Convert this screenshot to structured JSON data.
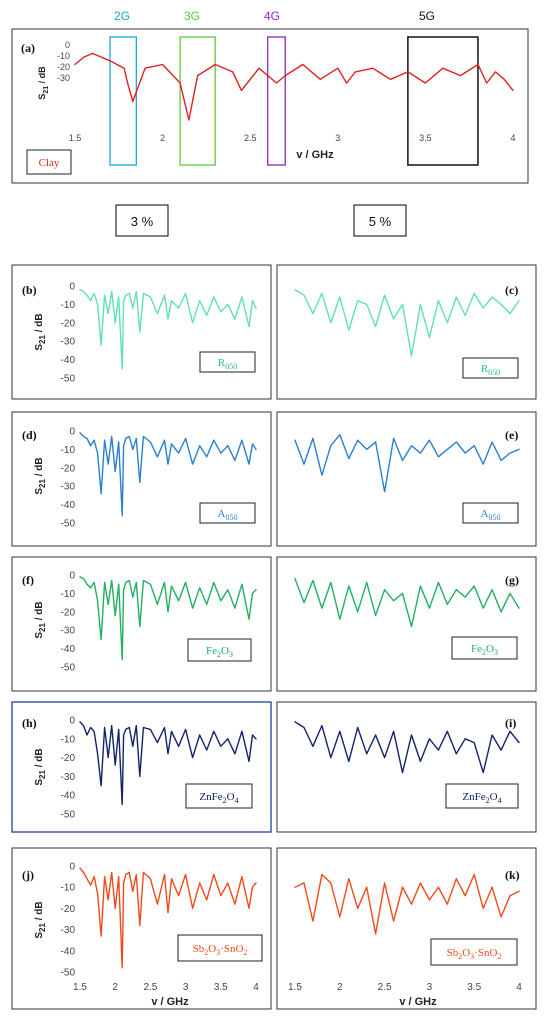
{
  "top": {
    "band_labels": [
      {
        "text": "2G",
        "color": "#19a6d8"
      },
      {
        "text": "3G",
        "color": "#5cc83a"
      },
      {
        "text": "4G",
        "color": "#8a2bb8"
      },
      {
        "text": "5G",
        "color": "#111111"
      }
    ],
    "pct_labels": [
      "3 %",
      "5 %"
    ]
  },
  "chart_data": [
    {
      "id": "a",
      "type": "line",
      "panel_label": "(a)",
      "ylabel": "S21 / dB",
      "xlabel": "v / GHz",
      "xlim": [
        1.5,
        4
      ],
      "ylim": [
        -20,
        0
      ],
      "xticks": [
        "1.5",
        "2",
        "2.5",
        "3",
        "3.5",
        "4"
      ],
      "yticks": [
        "0",
        "-10",
        "-20",
        "-30"
      ],
      "line_color": "#e02020",
      "legend": {
        "text": "Clay",
        "color": "#e02020"
      },
      "bands": [
        {
          "name": "2G",
          "range": [
            1.7,
            1.85
          ],
          "color": "#19a6d8"
        },
        {
          "name": "3G",
          "range": [
            2.1,
            2.3
          ],
          "color": "#5cc83a"
        },
        {
          "name": "4G",
          "range": [
            2.6,
            2.7
          ],
          "color": "#8a2bb8"
        },
        {
          "name": "5G",
          "range": [
            3.4,
            3.8
          ],
          "color": "#111111"
        }
      ],
      "x": [
        1.5,
        1.55,
        1.6,
        1.7,
        1.78,
        1.8,
        1.83,
        1.9,
        2.0,
        2.1,
        2.15,
        2.2,
        2.3,
        2.4,
        2.45,
        2.55,
        2.65,
        2.7,
        2.8,
        2.9,
        3.0,
        3.05,
        3.1,
        3.2,
        3.3,
        3.4,
        3.5,
        3.6,
        3.7,
        3.8,
        3.85,
        3.9,
        3.95,
        4.0
      ],
      "y": [
        -5,
        -3,
        -2,
        -4,
        -6,
        -10,
        -15,
        -6,
        -5,
        -10,
        -20,
        -8,
        -5,
        -7,
        -12,
        -6,
        -10,
        -8,
        -5,
        -9,
        -6,
        -10,
        -7,
        -6,
        -9,
        -7,
        -10,
        -6,
        -8,
        -5,
        -10,
        -7,
        -9,
        -12
      ]
    },
    {
      "id": "b",
      "type": "line",
      "panel_label": "(b)",
      "ylabel": "S21 / dB",
      "xlim": [
        1.5,
        4
      ],
      "ylim": [
        -50,
        0
      ],
      "yticks": [
        "0",
        "-10",
        "-20",
        "-30",
        "-40",
        "-50"
      ],
      "line_color": "#5fe0b6",
      "legend": {
        "text": "R050",
        "color": "#2fb88f"
      },
      "x": [
        1.5,
        1.55,
        1.6,
        1.65,
        1.7,
        1.75,
        1.8,
        1.85,
        1.9,
        1.95,
        2.0,
        2.05,
        2.1,
        2.12,
        2.15,
        2.2,
        2.25,
        2.3,
        2.35,
        2.4,
        2.5,
        2.6,
        2.7,
        2.75,
        2.8,
        2.9,
        3.0,
        3.1,
        3.2,
        3.3,
        3.4,
        3.5,
        3.6,
        3.7,
        3.8,
        3.9,
        3.95,
        4.0
      ],
      "y": [
        -2,
        -3,
        -5,
        -8,
        -4,
        -10,
        -32,
        -5,
        -15,
        -3,
        -20,
        -6,
        -45,
        -8,
        -5,
        -4,
        -12,
        -3,
        -25,
        -4,
        -6,
        -15,
        -5,
        -18,
        -8,
        -12,
        -4,
        -20,
        -8,
        -16,
        -6,
        -14,
        -10,
        -18,
        -6,
        -22,
        -8,
        -12
      ]
    },
    {
      "id": "c",
      "type": "line",
      "panel_label": "(c)",
      "ylabel": "",
      "xlim": [
        1.5,
        4
      ],
      "ylim": [
        -50,
        0
      ],
      "yticks": [],
      "line_color": "#5fe0b6",
      "legend": {
        "text": "R050",
        "color": "#2fb88f"
      },
      "x": [
        1.5,
        1.6,
        1.7,
        1.8,
        1.9,
        2.0,
        2.1,
        2.2,
        2.3,
        2.4,
        2.5,
        2.6,
        2.7,
        2.8,
        2.9,
        3.0,
        3.1,
        3.2,
        3.3,
        3.4,
        3.5,
        3.6,
        3.7,
        3.8,
        3.9,
        4.0
      ],
      "y": [
        -2,
        -5,
        -15,
        -4,
        -20,
        -6,
        -24,
        -8,
        -10,
        -22,
        -5,
        -18,
        -10,
        -38,
        -10,
        -28,
        -8,
        -20,
        -6,
        -16,
        -4,
        -12,
        -6,
        -10,
        -15,
        -8
      ]
    },
    {
      "id": "d",
      "type": "line",
      "panel_label": "(d)",
      "ylabel": "S21 / dB",
      "xlim": [
        1.5,
        4
      ],
      "ylim": [
        -50,
        0
      ],
      "yticks": [
        "0",
        "-10",
        "-20",
        "-30",
        "-40",
        "-50"
      ],
      "line_color": "#2a7fd0",
      "legend": {
        "text": "A050",
        "color": "#2a7fd0"
      },
      "x": [
        1.5,
        1.55,
        1.6,
        1.65,
        1.7,
        1.75,
        1.8,
        1.85,
        1.9,
        1.95,
        2.0,
        2.05,
        2.1,
        2.12,
        2.15,
        2.2,
        2.25,
        2.3,
        2.35,
        2.4,
        2.5,
        2.6,
        2.7,
        2.75,
        2.8,
        2.9,
        3.0,
        3.1,
        3.2,
        3.3,
        3.4,
        3.5,
        3.6,
        3.7,
        3.8,
        3.9,
        3.95,
        4.0
      ],
      "y": [
        -1,
        -3,
        -4,
        -8,
        -5,
        -12,
        -34,
        -5,
        -18,
        -3,
        -22,
        -6,
        -46,
        -8,
        -4,
        -3,
        -10,
        -4,
        -28,
        -3,
        -6,
        -14,
        -5,
        -18,
        -7,
        -12,
        -4,
        -18,
        -8,
        -14,
        -5,
        -12,
        -8,
        -16,
        -5,
        -18,
        -7,
        -10
      ]
    },
    {
      "id": "e",
      "type": "line",
      "panel_label": "(e)",
      "ylabel": "",
      "xlim": [
        1.5,
        4
      ],
      "ylim": [
        -50,
        0
      ],
      "yticks": [],
      "line_color": "#2a7fd0",
      "legend": {
        "text": "A050",
        "color": "#2a7fd0"
      },
      "x": [
        1.5,
        1.6,
        1.7,
        1.8,
        1.9,
        2.0,
        2.1,
        2.2,
        2.3,
        2.4,
        2.5,
        2.6,
        2.7,
        2.8,
        2.9,
        3.0,
        3.1,
        3.2,
        3.3,
        3.4,
        3.5,
        3.6,
        3.7,
        3.8,
        3.9,
        4.0
      ],
      "y": [
        -5,
        -18,
        -4,
        -24,
        -8,
        -2,
        -15,
        -5,
        -10,
        -6,
        -33,
        -4,
        -16,
        -8,
        -12,
        -5,
        -14,
        -10,
        -6,
        -12,
        -8,
        -18,
        -6,
        -16,
        -12,
        -10
      ]
    },
    {
      "id": "f",
      "type": "line",
      "panel_label": "(f)",
      "ylabel": "S21 / dB",
      "xlim": [
        1.5,
        4
      ],
      "ylim": [
        -50,
        0
      ],
      "yticks": [
        "0",
        "-10",
        "-20",
        "-30",
        "-40",
        "-50"
      ],
      "line_color": "#22b060",
      "legend": {
        "text": "Fe2O3",
        "color": "#22b060"
      },
      "x": [
        1.5,
        1.55,
        1.6,
        1.65,
        1.7,
        1.75,
        1.8,
        1.85,
        1.9,
        1.95,
        2.0,
        2.05,
        2.1,
        2.12,
        2.15,
        2.2,
        2.25,
        2.3,
        2.35,
        2.4,
        2.5,
        2.6,
        2.7,
        2.75,
        2.8,
        2.9,
        3.0,
        3.1,
        3.2,
        3.3,
        3.4,
        3.5,
        3.6,
        3.7,
        3.8,
        3.9,
        3.95,
        4.0
      ],
      "y": [
        -1,
        -2,
        -5,
        -7,
        -4,
        -14,
        -35,
        -4,
        -16,
        -3,
        -22,
        -5,
        -46,
        -8,
        -4,
        -3,
        -12,
        -4,
        -28,
        -3,
        -5,
        -16,
        -4,
        -20,
        -6,
        -14,
        -4,
        -18,
        -7,
        -16,
        -4,
        -14,
        -8,
        -18,
        -5,
        -24,
        -10,
        -8
      ]
    },
    {
      "id": "g",
      "type": "line",
      "panel_label": "(g)",
      "ylabel": "",
      "xlim": [
        1.5,
        4
      ],
      "ylim": [
        -50,
        0
      ],
      "yticks": [],
      "line_color": "#22b060",
      "legend": {
        "text": "Fe2O3",
        "color": "#22b060"
      },
      "x": [
        1.5,
        1.6,
        1.7,
        1.8,
        1.9,
        2.0,
        2.1,
        2.2,
        2.3,
        2.4,
        2.5,
        2.6,
        2.7,
        2.8,
        2.9,
        3.0,
        3.1,
        3.2,
        3.3,
        3.4,
        3.5,
        3.6,
        3.7,
        3.8,
        3.9,
        4.0
      ],
      "y": [
        -2,
        -15,
        -3,
        -18,
        -4,
        -24,
        -6,
        -20,
        -4,
        -22,
        -8,
        -14,
        -10,
        -28,
        -6,
        -18,
        -4,
        -16,
        -8,
        -12,
        -6,
        -18,
        -8,
        -20,
        -10,
        -18
      ]
    },
    {
      "id": "h",
      "type": "line",
      "panel_label": "(h)",
      "ylabel": "S21 / dB",
      "xlim": [
        1.5,
        4
      ],
      "ylim": [
        -50,
        0
      ],
      "yticks": [
        "0",
        "-10",
        "-20",
        "-30",
        "-40",
        "-50"
      ],
      "line_color": "#13236b",
      "legend": {
        "text": "ZnFe2O4",
        "color": "#13236b"
      },
      "x": [
        1.5,
        1.55,
        1.6,
        1.65,
        1.7,
        1.75,
        1.8,
        1.85,
        1.9,
        1.95,
        2.0,
        2.05,
        2.1,
        2.12,
        2.15,
        2.2,
        2.25,
        2.3,
        2.35,
        2.4,
        2.5,
        2.6,
        2.7,
        2.75,
        2.8,
        2.9,
        3.0,
        3.1,
        3.2,
        3.3,
        3.4,
        3.5,
        3.6,
        3.7,
        3.8,
        3.9,
        3.95,
        4.0
      ],
      "y": [
        -1,
        -3,
        -8,
        -4,
        -6,
        -18,
        -35,
        -4,
        -20,
        -3,
        -24,
        -5,
        -45,
        -8,
        -5,
        -4,
        -14,
        -3,
        -30,
        -4,
        -5,
        -12,
        -4,
        -18,
        -6,
        -14,
        -5,
        -20,
        -8,
        -16,
        -6,
        -14,
        -10,
        -18,
        -6,
        -22,
        -8,
        -10
      ]
    },
    {
      "id": "i",
      "type": "line",
      "panel_label": "(i)",
      "ylabel": "",
      "xlim": [
        1.5,
        4
      ],
      "ylim": [
        -50,
        0
      ],
      "yticks": [],
      "line_color": "#13236b",
      "legend": {
        "text": "ZnFe2O4",
        "color": "#13236b"
      },
      "x": [
        1.5,
        1.6,
        1.7,
        1.8,
        1.9,
        2.0,
        2.1,
        2.2,
        2.3,
        2.4,
        2.5,
        2.6,
        2.7,
        2.8,
        2.9,
        3.0,
        3.1,
        3.2,
        3.3,
        3.4,
        3.5,
        3.6,
        3.7,
        3.8,
        3.9,
        4.0
      ],
      "y": [
        -1,
        -4,
        -14,
        -3,
        -20,
        -6,
        -22,
        -4,
        -18,
        -8,
        -20,
        -6,
        -28,
        -8,
        -22,
        -10,
        -16,
        -6,
        -18,
        -10,
        -12,
        -28,
        -8,
        -16,
        -6,
        -12
      ]
    },
    {
      "id": "j",
      "type": "line",
      "panel_label": "(j)",
      "ylabel": "S21 / dB",
      "xlabel": "v / GHz",
      "xlim": [
        1.5,
        4
      ],
      "ylim": [
        -50,
        0
      ],
      "xticks": [
        "1.5",
        "2",
        "2.5",
        "3",
        "3.5",
        "4"
      ],
      "yticks": [
        "0",
        "-10",
        "-20",
        "-30",
        "-40",
        "-50"
      ],
      "line_color": "#f04a1a",
      "legend": {
        "text": "Sb2O3·SnO2",
        "color": "#f04a1a"
      },
      "x": [
        1.5,
        1.55,
        1.6,
        1.65,
        1.7,
        1.75,
        1.8,
        1.85,
        1.9,
        1.95,
        2.0,
        2.05,
        2.1,
        2.12,
        2.15,
        2.2,
        2.25,
        2.3,
        2.35,
        2.4,
        2.5,
        2.6,
        2.7,
        2.75,
        2.8,
        2.9,
        3.0,
        3.1,
        3.2,
        3.3,
        3.4,
        3.5,
        3.6,
        3.7,
        3.8,
        3.9,
        3.95,
        4.0
      ],
      "y": [
        -1,
        -3,
        -6,
        -9,
        -5,
        -13,
        -33,
        -5,
        -16,
        -3,
        -20,
        -5,
        -48,
        -8,
        -4,
        -3,
        -12,
        -4,
        -28,
        -3,
        -6,
        -18,
        -4,
        -22,
        -6,
        -14,
        -4,
        -20,
        -8,
        -16,
        -4,
        -14,
        -8,
        -18,
        -5,
        -20,
        -10,
        -8
      ]
    },
    {
      "id": "k",
      "type": "line",
      "panel_label": "(k)",
      "ylabel": "",
      "xlabel": "v / GHz",
      "xlim": [
        1.5,
        4
      ],
      "ylim": [
        -50,
        0
      ],
      "xticks": [
        "1.5",
        "2",
        "2.5",
        "3",
        "3.5",
        "4"
      ],
      "yticks": [],
      "line_color": "#f04a1a",
      "legend": {
        "text": "Sb2O3·SnO2",
        "color": "#f04a1a"
      },
      "x": [
        1.5,
        1.6,
        1.7,
        1.8,
        1.9,
        2.0,
        2.1,
        2.2,
        2.3,
        2.4,
        2.5,
        2.6,
        2.7,
        2.8,
        2.9,
        3.0,
        3.1,
        3.2,
        3.3,
        3.4,
        3.5,
        3.6,
        3.7,
        3.8,
        3.9,
        4.0
      ],
      "y": [
        -10,
        -8,
        -26,
        -4,
        -8,
        -24,
        -6,
        -20,
        -10,
        -32,
        -8,
        -26,
        -10,
        -18,
        -8,
        -16,
        -10,
        -18,
        -6,
        -14,
        -4,
        -20,
        -10,
        -24,
        -14,
        -12
      ]
    }
  ]
}
